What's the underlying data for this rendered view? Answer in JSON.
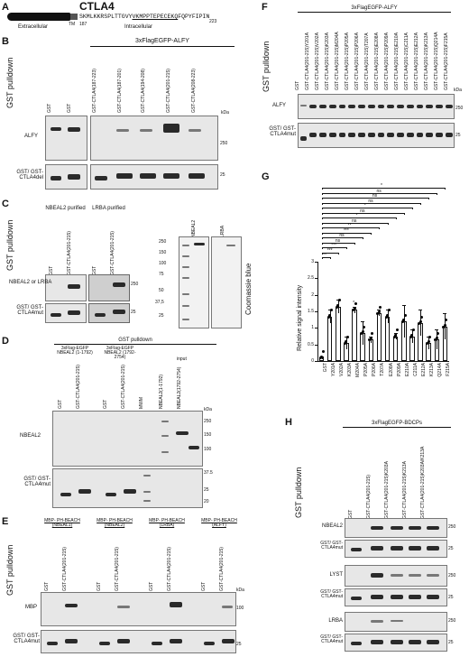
{
  "panel_a": {
    "letter": "A",
    "title": "CTLA4",
    "extracellular": "Extracellular",
    "tm": "TM",
    "intracellular": "Intracellular",
    "start_num": "187",
    "end_num": "223",
    "seq_a": "SKMLKKRSPLTTGVY",
    "seq_b": "VKMPPTEPECEKQ",
    "seq_c": "FQPYFIPIN"
  },
  "panel_b": {
    "letter": "B",
    "title": "3xFlagEGFP-ALFY",
    "side": "GST pulldown",
    "lanes_left": [
      "GST"
    ],
    "lanes_right": [
      "GST",
      "GST-CTLA4(187-223)",
      "GST-CTLA4(187-201)",
      "GST-CTLA4(194-208)",
      "GST-CTLA4(201-215)",
      "GST-CTLA4(208-223)"
    ],
    "row1": "ALFY",
    "row2": "GST/ GST-CTLA4del",
    "kda": "kDa",
    "m250": "250",
    "m25": "25"
  },
  "panel_c": {
    "letter": "C",
    "side": "GST pulldown",
    "head1": "NBEAL2 purified",
    "head2": "LRBA purified",
    "lanes": [
      "GST",
      "GST-CTLA4(201-215)",
      "GST",
      "GST-CTLA4(201-215)"
    ],
    "row1": "NBEAL2 or LRBA",
    "row2": "GST/ GST-CTLA4mut",
    "m250": "250",
    "m25": "25",
    "gel_lanes": [
      "NBEAL2",
      "LRBA"
    ],
    "ladder": [
      "250",
      "150",
      "100",
      "75",
      "50",
      "37,5",
      "25"
    ],
    "coomassie": "Coomassie blue"
  },
  "panel_d": {
    "letter": "D",
    "title": "GST pulldown",
    "sub1": "3xFlag-EGFP NBEAL2 (1-1792)",
    "sub2": "3xFlag-EGFP NBEAL2 (1792-2754)",
    "input": "input",
    "lanes": [
      "GST",
      "GST-CTLA4(201-215)",
      "GST",
      "GST-CTLA4(201-215)",
      "MWM",
      "NBEAL2(1-1792)",
      "NBEAL2(1792-2754)"
    ],
    "row1": "NBEAL2",
    "row2": "GST/ GST-CTLA4mut",
    "kda": "kDa",
    "markers": [
      "250",
      "150",
      "100",
      "37.5",
      "25",
      "20"
    ]
  },
  "panel_e": {
    "letter": "E",
    "side": "GST pulldown",
    "groups": [
      "MBP- PH-BEACH (NBEAL1)",
      "MBP- PH-BEACH (NBEAL2)",
      "MBP- PH-BEACH (LRBA)",
      "MBP- PH-BEACH (ALFY)"
    ],
    "lane_a": "GST",
    "lane_b": "GST-CTLA4(201-215)",
    "row1": "MBP",
    "row2": "GST/ GST-CTLA4mut",
    "kda": "kDa",
    "m100": "100",
    "m25": "25"
  },
  "panel_f": {
    "letter": "F",
    "title": "3xFlagEGFP-ALFY",
    "side": "GST pulldown",
    "lanes": [
      "GST",
      "GST-CTLA4(201-215)Y201A",
      "GST-CTLA4(201-215)V202A",
      "GST-CTLA4(201-215)K203A",
      "GST-CTLA4(201-215)M204A",
      "GST-CTLA4(201-215)P205A",
      "GST-CTLA4(201-215)P206A",
      "GST-CTLA4(201-215)T207A",
      "GST-CTLA4(201-215)E208A",
      "GST-CTLA4(201-215)P209A",
      "GST-CTLA4(201-215)E210A",
      "GST-CTLA4(201-215)C211A",
      "GST-CTLA4(201-215)E212A",
      "GST-CTLA4(201-215)K213A",
      "GST-CTLA4(201-215)Q214A",
      "GST-CTLA4(201-215)F215A"
    ],
    "row1": "ALFY",
    "row2": "GST/ GST-CTLA4mut",
    "kda": "kDa",
    "m250": "250",
    "m25": "25"
  },
  "panel_g": {
    "letter": "G",
    "ylabel": "Relative signal intensity",
    "yticks": [
      "0",
      "0.5",
      "1",
      "1.5",
      "2",
      "2.5",
      "3"
    ],
    "categories": [
      "GST",
      "Y201A",
      "V202A",
      "K203A",
      "M204A",
      "P205A",
      "P206A",
      "T207A",
      "E208A",
      "P209A",
      "E210A",
      "C211A",
      "E212A",
      "K213A",
      "Q214A",
      "F215A"
    ],
    "values": [
      0.1,
      1.35,
      1.65,
      0.55,
      1.55,
      0.85,
      0.65,
      1.45,
      1.35,
      0.75,
      1.2,
      0.75,
      1.15,
      0.55,
      0.65,
      1.05
    ],
    "errors": [
      0.05,
      0.2,
      0.2,
      0.2,
      0.1,
      0.35,
      0.1,
      0.1,
      0.2,
      0.1,
      0.5,
      0.2,
      0.4,
      0.2,
      0.3,
      0.4
    ],
    "bar_stars": [
      "",
      "",
      "",
      "",
      "*",
      "",
      "",
      "",
      "",
      "",
      "",
      "",
      "",
      "",
      "",
      ""
    ],
    "comparisons": [
      {
        "to": "F215A",
        "label": "*"
      },
      {
        "to": "Q214A",
        "label": "ns"
      },
      {
        "to": "K213A",
        "label": "ns"
      },
      {
        "to": "E212A",
        "label": "ns"
      },
      {
        "to": "C211A",
        "label": "*"
      },
      {
        "to": "E210A",
        "label": "ns"
      },
      {
        "to": "P209A",
        "label": "*"
      },
      {
        "to": "E208A",
        "label": "ns"
      },
      {
        "to": "T207A",
        "label": "**"
      },
      {
        "to": "P206A",
        "label": "***"
      },
      {
        "to": "P205A",
        "label": "ns"
      },
      {
        "to": "M204A",
        "label": "ns"
      },
      {
        "to": "K203A",
        "label": "***"
      },
      {
        "to": "V202A",
        "label": "***"
      },
      {
        "to": "Y201A",
        "label": "**"
      }
    ]
  },
  "panel_h": {
    "letter": "H",
    "title": "3xFlagEGFP-BDCPs",
    "side": "GST pulldown",
    "lanes": [
      "GST",
      "GST-CTLA4(201-215)",
      "GST-CTLA4(201-215)K203A",
      "GST-CTLA4(201-215)K213A",
      "GST-CTLA4(201-215)K203A/K213A"
    ],
    "rows": [
      "NBEAL2",
      "GST/ GST-CTLA4mut",
      "LYST",
      "GST/ GST-CTLA4mut",
      "LRBA",
      "GST/ GST-CTLA4mut"
    ],
    "m250": "250",
    "m25": "25"
  }
}
